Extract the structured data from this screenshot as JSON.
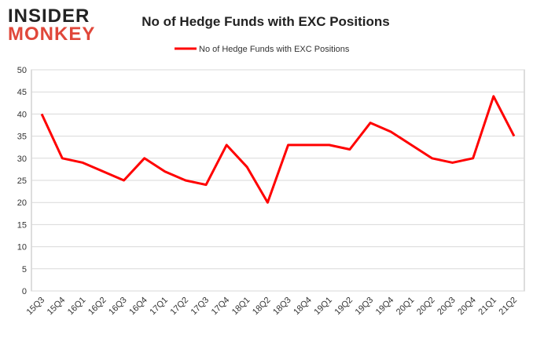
{
  "logo": {
    "line1": "INSIDER",
    "line2": "MONKEY"
  },
  "chart_data": {
    "type": "line",
    "title": "No of Hedge Funds with EXC Positions",
    "categories": [
      "15Q3",
      "15Q4",
      "16Q1",
      "16Q2",
      "16Q3",
      "16Q4",
      "17Q1",
      "17Q2",
      "17Q3",
      "17Q4",
      "18Q1",
      "18Q2",
      "18Q3",
      "18Q4",
      "19Q1",
      "19Q2",
      "19Q3",
      "19Q4",
      "20Q1",
      "20Q2",
      "20Q3",
      "20Q4",
      "21Q1",
      "21Q2"
    ],
    "series": [
      {
        "name": "No of Hedge Funds with EXC Positions",
        "color": "#ff0000",
        "values": [
          40,
          30,
          29,
          27,
          25,
          30,
          27,
          25,
          24,
          33,
          28,
          20,
          33,
          33,
          33,
          32,
          38,
          36,
          33,
          30,
          29,
          30,
          44,
          35
        ]
      }
    ],
    "ylim": [
      0,
      50
    ],
    "yticks": [
      0,
      5,
      10,
      15,
      20,
      25,
      30,
      35,
      40,
      45,
      50
    ],
    "grid": true,
    "legend": "top"
  }
}
